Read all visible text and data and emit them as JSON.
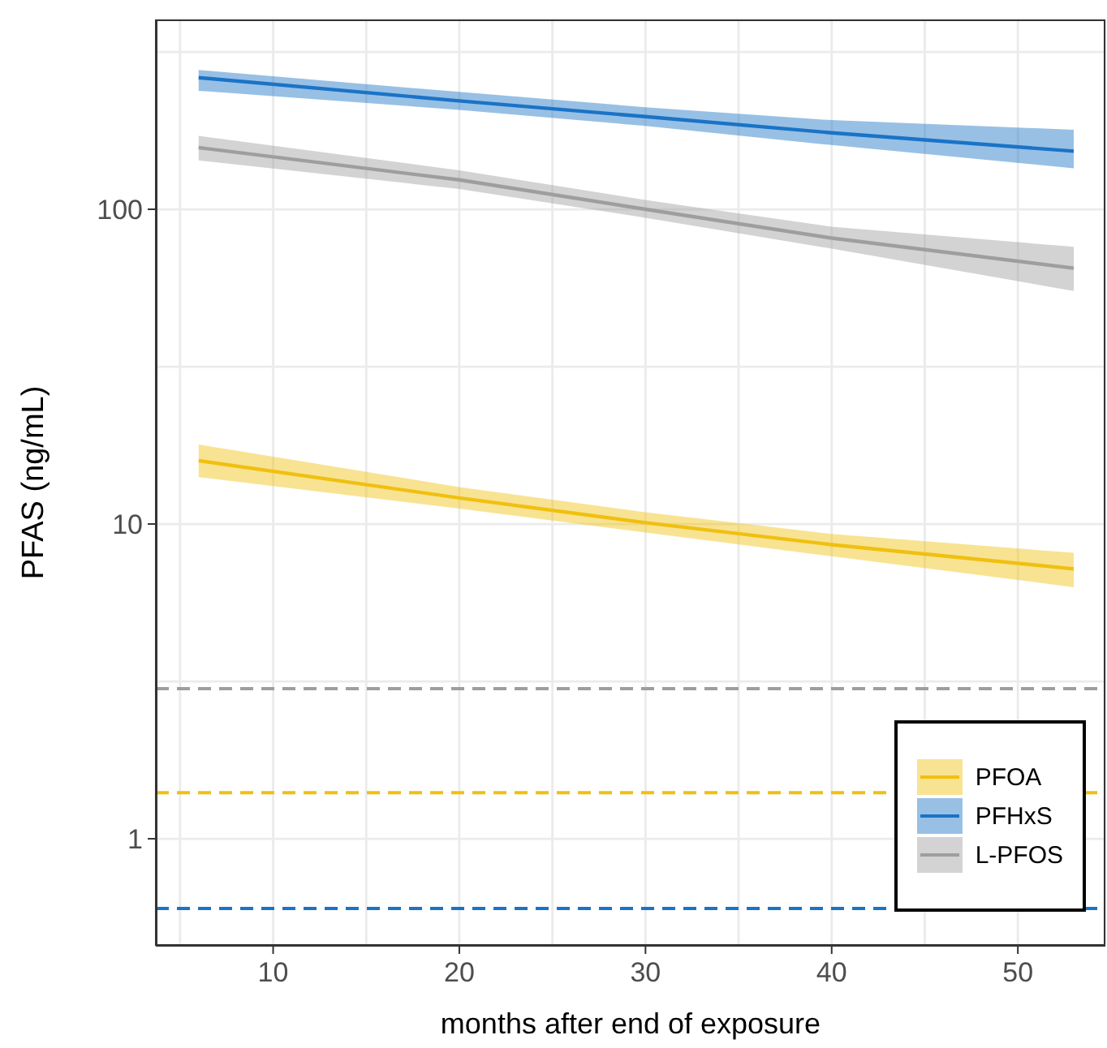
{
  "chart_data": {
    "type": "line",
    "xlabel": "months after end of exposure",
    "ylabel": "PFAS (ng/mL)",
    "x": [
      6,
      20,
      30,
      40,
      53
    ],
    "series": [
      {
        "name": "PFOA",
        "color": "#f0c010",
        "values": [
          15.9,
          12.1,
          10.1,
          8.6,
          7.2
        ],
        "lower": [
          14.1,
          11.2,
          9.4,
          7.9,
          6.3
        ],
        "upper": [
          17.9,
          13.1,
          10.9,
          9.3,
          8.1
        ]
      },
      {
        "name": "PFHxS",
        "color": "#1a73c6",
        "values": [
          262,
          221,
          197,
          175,
          153
        ],
        "lower": [
          238,
          207,
          184,
          160,
          135
        ],
        "upper": [
          277,
          236,
          211,
          192,
          179
        ]
      },
      {
        "name": "L-PFOS",
        "color": "#9e9e9e",
        "values": [
          157,
          124,
          100,
          81,
          65
        ],
        "lower": [
          143,
          116,
          94,
          75,
          55
        ],
        "upper": [
          171,
          133,
          107,
          88,
          76
        ]
      }
    ],
    "ref_lines": [
      {
        "axis": "y",
        "value": 3,
        "color": "#9e9e9e",
        "line_style": "dashed"
      },
      {
        "axis": "y",
        "value": 1.4,
        "color": "#f0c010",
        "line_style": "dashed"
      },
      {
        "axis": "y",
        "value": 0.6,
        "color": "#1a73c6",
        "line_style": "dashed"
      }
    ],
    "log": "y",
    "xlim": [
      3.7,
      54.7
    ],
    "ylim": [
      0.457,
      401
    ],
    "xticks": [
      {
        "value": 5,
        "label": null
      },
      10,
      {
        "value": 15,
        "label": null
      },
      20,
      {
        "value": 25,
        "label": null
      },
      30,
      {
        "value": 35,
        "label": null
      },
      40,
      {
        "value": 45,
        "label": null
      },
      50
    ],
    "yticks": [
      1,
      {
        "value": 3.16,
        "label": null
      },
      10,
      {
        "value": 31.6,
        "label": null
      },
      100,
      {
        "value": 316,
        "label": null
      }
    ],
    "grid": true,
    "legend": "bottom right"
  }
}
